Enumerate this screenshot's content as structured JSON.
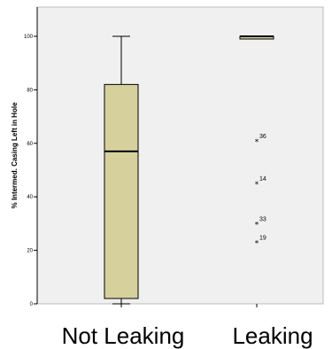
{
  "chart_data": {
    "type": "box",
    "ylabel": "% Intermed. Casing Left in Hole",
    "ylim": [
      0,
      110
    ],
    "yticks": [
      0,
      20,
      40,
      60,
      80,
      100
    ],
    "grid": false,
    "colors": {
      "plot_background": "#f0f0f0",
      "box_fill": "#d6d09c",
      "line": "#000000"
    },
    "categories": [
      "Not Leaking",
      "Leaking"
    ],
    "boxes": [
      {
        "category": "Not Leaking",
        "min": 0,
        "q1": 2,
        "median": 57,
        "q3": 82,
        "max": 100,
        "outliers": []
      },
      {
        "category": "Leaking",
        "min": 99,
        "q1": 99,
        "median": 100,
        "q3": 100,
        "max": 100,
        "outliers": [
          {
            "label": "36",
            "value": 61
          },
          {
            "label": "14",
            "value": 45
          },
          {
            "label": "33",
            "value": 30
          },
          {
            "label": "19",
            "value": 23
          }
        ]
      }
    ]
  }
}
